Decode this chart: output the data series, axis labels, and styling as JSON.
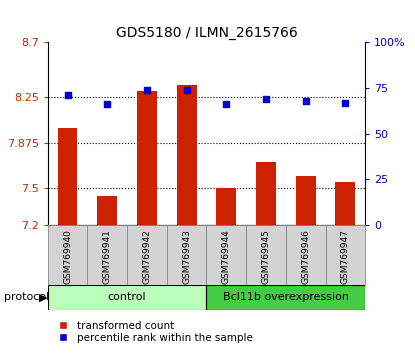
{
  "title": "GDS5180 / ILMN_2615766",
  "samples": [
    "GSM769940",
    "GSM769941",
    "GSM769942",
    "GSM769943",
    "GSM769944",
    "GSM769945",
    "GSM769946",
    "GSM769947"
  ],
  "transformed_counts": [
    8.0,
    7.44,
    8.3,
    8.35,
    7.5,
    7.72,
    7.6,
    7.55
  ],
  "percentile_ranks": [
    71,
    66,
    74,
    74,
    66,
    69,
    68,
    67
  ],
  "ylim_left": [
    7.2,
    8.7
  ],
  "ylim_right": [
    0,
    100
  ],
  "yticks_left": [
    7.2,
    7.5,
    7.875,
    8.25,
    8.7
  ],
  "yticks_left_labels": [
    "7.2",
    "7.5",
    "7.875",
    "8.25",
    "8.7"
  ],
  "yticks_right": [
    0,
    25,
    50,
    75,
    100
  ],
  "yticks_right_labels": [
    "0",
    "25",
    "50",
    "75",
    "100%"
  ],
  "hlines": [
    7.5,
    7.875,
    8.25
  ],
  "bar_color": "#cc2200",
  "dot_color": "#0000cc",
  "bar_width": 0.5,
  "group_control_color": "#bbffbb",
  "group_overexp_color": "#44cc44",
  "legend_items": [
    {
      "label": "transformed count",
      "color": "#cc2200"
    },
    {
      "label": "percentile rank within the sample",
      "color": "#0000cc"
    }
  ],
  "background_color": "#ffffff",
  "tick_label_color_left": "#cc2200",
  "tick_label_color_right": "#0000cc",
  "title_fontsize": 10,
  "axis_fontsize": 8,
  "sample_fontsize": 6.5,
  "group_fontsize": 8,
  "legend_fontsize": 7.5
}
